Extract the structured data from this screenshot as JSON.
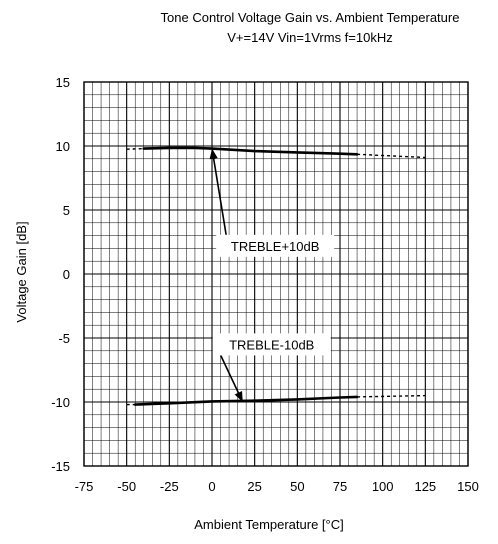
{
  "chart_data": {
    "type": "line",
    "title": "Tone Control Voltage Gain vs. Ambient Temperature",
    "subtitle": "V+=14V Vin=1Vrms f=10kHz",
    "xlabel": "Ambient Temperature [°C]",
    "ylabel": "Voltage Gain [dB]",
    "xlim": [
      -75,
      150
    ],
    "ylim": [
      -15,
      15
    ],
    "x_ticks": [
      -75,
      -50,
      -25,
      0,
      25,
      50,
      75,
      100,
      125,
      150
    ],
    "y_ticks": [
      15,
      10,
      5,
      0,
      -5,
      -10,
      -15
    ],
    "x_tick_labels": [
      "-75",
      "-50",
      "-25",
      "0",
      "25",
      "50",
      "75",
      "100",
      "125",
      "150"
    ],
    "y_tick_labels": [
      "15",
      "10",
      "5",
      "0",
      "-5",
      "-10",
      "-15"
    ],
    "grid": true,
    "minor_grid_per_major": 5,
    "series": [
      {
        "label": "TREBLE+10dB",
        "solid": {
          "x": [
            -40,
            -25,
            -10,
            0,
            25,
            50,
            75,
            85
          ],
          "y": [
            9.8,
            9.85,
            9.85,
            9.8,
            9.6,
            9.5,
            9.4,
            9.35
          ]
        },
        "dashed_segments": [
          {
            "x": [
              -50,
              -40
            ],
            "y": [
              9.75,
              9.8
            ]
          },
          {
            "x": [
              85,
              125
            ],
            "y": [
              9.35,
              9.1
            ]
          }
        ]
      },
      {
        "label": "TREBLE-10dB",
        "solid": {
          "x": [
            -45,
            -25,
            0,
            25,
            50,
            75,
            85
          ],
          "y": [
            -10.2,
            -10.1,
            -9.95,
            -9.9,
            -9.8,
            -9.65,
            -9.6
          ]
        },
        "dashed_segments": [
          {
            "x": [
              -50,
              -45
            ],
            "y": [
              -10.2,
              -10.2
            ]
          },
          {
            "x": [
              85,
              125
            ],
            "y": [
              -9.6,
              -9.5
            ]
          }
        ]
      }
    ],
    "annotations": [
      {
        "text": "TREBLE+10dB",
        "label_at": [
          37,
          2.2
        ],
        "arrow_to": [
          0,
          9.8
        ]
      },
      {
        "text": "TREBLE-10dB",
        "label_at": [
          35,
          -5.5
        ],
        "arrow_to": [
          18,
          -10
        ]
      }
    ]
  }
}
